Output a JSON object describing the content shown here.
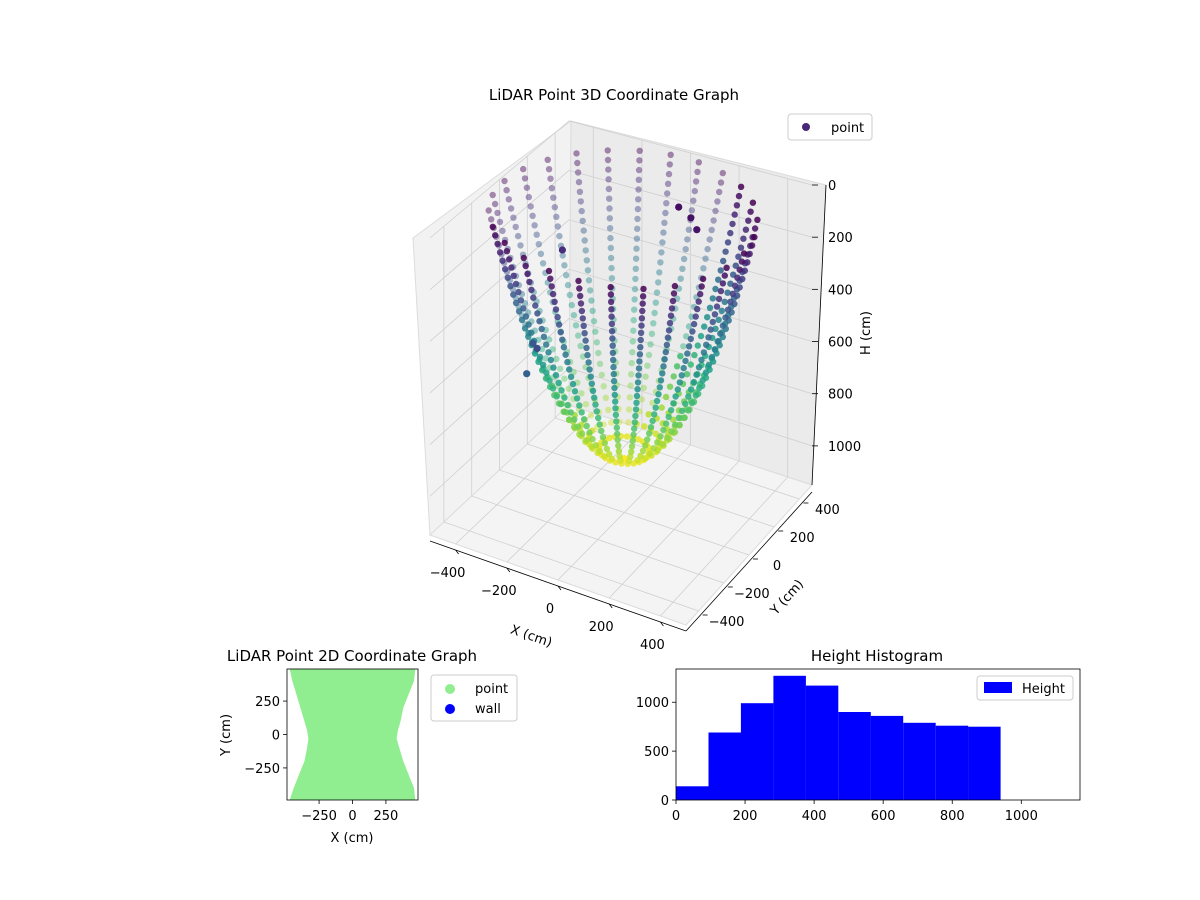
{
  "chart_data": [
    {
      "type": "scatter3d",
      "title": "LiDAR Point 3D Coordinate Graph",
      "xlabel": "X (cm)",
      "ylabel": "Y (cm)",
      "zlabel": "H (cm)",
      "xlim": [
        -500,
        500
      ],
      "ylim": [
        -500,
        500
      ],
      "zlim": [
        1150,
        0
      ],
      "xticks": [
        -400,
        -200,
        0,
        200,
        400
      ],
      "yticks": [
        -400,
        -200,
        0,
        200,
        400
      ],
      "zticks": [
        0,
        200,
        400,
        600,
        800,
        1000
      ],
      "grid": true,
      "colormap": "viridis",
      "legend": {
        "position": "top-right",
        "entries": [
          {
            "label": "point",
            "color": "#482878"
          }
        ]
      },
      "series": [
        {
          "name": "point",
          "rings": {
            "count": 26,
            "x_radius": 480,
            "y_radius": 460,
            "h_min": 0,
            "h_max": 940
          }
        }
      ],
      "outliers": [
        {
          "x": -330,
          "y": 150,
          "h": 300
        },
        {
          "x": -410,
          "y": 80,
          "h": 660
        },
        {
          "x": -380,
          "y": -20,
          "h": 720
        },
        {
          "x": -300,
          "y": -90,
          "h": 560
        },
        {
          "x": 60,
          "y": 300,
          "h": 95
        },
        {
          "x": 120,
          "y": 280,
          "h": 110
        },
        {
          "x": 160,
          "y": 250,
          "h": 130
        }
      ]
    },
    {
      "type": "scatter",
      "title": "LiDAR Point 2D Coordinate Graph",
      "xlabel": "X (cm)",
      "ylabel": "Y (cm)",
      "xlim": [
        -490,
        490
      ],
      "ylim": [
        -490,
        490
      ],
      "xticks": [
        -250,
        0,
        250
      ],
      "yticks": [
        -250,
        0,
        250
      ],
      "legend": {
        "position": "outside-right",
        "entries": [
          {
            "label": "point",
            "color": "#90ee90"
          },
          {
            "label": "wall",
            "color": "#0000ff"
          }
        ]
      },
      "series": [
        {
          "name": "point",
          "boundary_left_x": [
            -470,
            -450,
            -420,
            -390,
            -360,
            -340,
            -330,
            -340,
            -360,
            -400,
            -440,
            -470
          ],
          "boundary_right_x": [
            470,
            460,
            420,
            380,
            360,
            340,
            330,
            350,
            380,
            420,
            460,
            470
          ],
          "boundary_y": [
            490,
            400,
            300,
            200,
            100,
            30,
            -30,
            -100,
            -200,
            -300,
            -400,
            -490
          ]
        },
        {
          "name": "wall",
          "points": []
        }
      ]
    },
    {
      "type": "histogram",
      "title": "Height Histogram",
      "xlabel": "",
      "ylabel": "",
      "xlim": [
        0,
        1170
      ],
      "ylim": [
        0,
        1340
      ],
      "xticks": [
        0,
        200,
        400,
        600,
        800,
        1000
      ],
      "yticks": [
        0,
        500,
        1000
      ],
      "legend": {
        "position": "top-right",
        "entries": [
          {
            "label": "Height",
            "color": "#0000ff"
          }
        ]
      },
      "bin_edges": [
        0,
        94,
        188,
        282,
        376,
        470,
        564,
        658,
        752,
        846,
        940
      ],
      "counts": [
        140,
        690,
        990,
        1270,
        1170,
        900,
        860,
        790,
        760,
        750
      ],
      "color": "#0000ff"
    }
  ]
}
